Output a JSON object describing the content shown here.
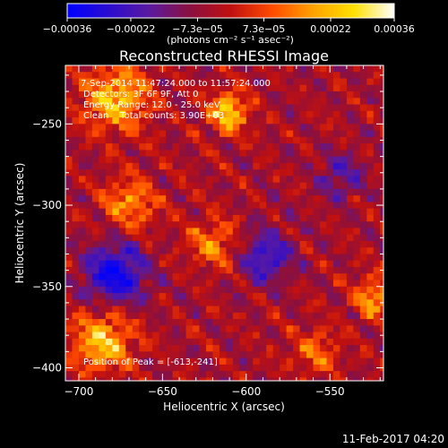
{
  "chart_data": {
    "type": "heatmap",
    "title": "Reconstructed RHESSI Image",
    "xlabel": "Heliocentric X (arcsec)",
    "ylabel": "Heliocentric Y (arcsec)",
    "xlim": [
      -708,
      -518
    ],
    "ylim": [
      -408,
      -214
    ],
    "x_ticks": [
      -700,
      -650,
      -600,
      -550
    ],
    "y_ticks": [
      -400,
      -350,
      -300,
      -250
    ],
    "x_tick_labels": [
      "−700",
      "−650",
      "−600",
      "−550"
    ],
    "y_tick_labels": [
      "−400",
      "−350",
      "−300",
      "−250"
    ],
    "colorbar": {
      "range": [
        -0.00036,
        0.00036
      ],
      "ticks": [
        -0.00036,
        -0.00022,
        -7.3e-05,
        7.3e-05,
        0.00022,
        0.00036
      ],
      "tick_labels": [
        "−0.00036",
        "−0.00022",
        "−7.3e−05",
        "7.3e−05",
        "0.00022",
        "0.00036"
      ],
      "unit_label": "(photons cm⁻² s⁻¹ asec⁻²)",
      "colors": [
        "#0000ff",
        "#2a0cd0",
        "#5a1aa0",
        "#8a1040",
        "#c01010",
        "#ff4a00",
        "#ffa000",
        "#ffe000",
        "#ffffff"
      ]
    },
    "annotations": {
      "time": "7-Sep-2014 11:47:24.000 to 11:57:24.000",
      "detectors": "Detectors: 3F 6F 9F, Att 0",
      "energy": "Energy Range: 12.0 - 25.0 keV",
      "clean": "Clean    Total counts: 3.90E+03",
      "peak": "Position of Peak = [-613,-241]"
    },
    "peak": {
      "x": -613,
      "y": -241
    },
    "bright_regions": [
      {
        "x": -613,
        "y": -241,
        "intensity": 1.0,
        "size": 12
      },
      {
        "x": -680,
        "y": -232,
        "intensity": 0.9,
        "size": 20
      },
      {
        "x": -688,
        "y": -382,
        "intensity": 0.9,
        "size": 18
      },
      {
        "x": -672,
        "y": -297,
        "intensity": 0.65,
        "size": 16
      },
      {
        "x": -622,
        "y": -322,
        "intensity": 0.6,
        "size": 15
      },
      {
        "x": -525,
        "y": -355,
        "intensity": 0.75,
        "size": 12
      },
      {
        "x": -560,
        "y": -388,
        "intensity": 0.5,
        "size": 14
      }
    ],
    "dark_regions": [
      {
        "x": -680,
        "y": -340,
        "intensity": 0.8,
        "size": 18
      },
      {
        "x": -590,
        "y": -330,
        "intensity": 0.6,
        "size": 16
      },
      {
        "x": -545,
        "y": -280,
        "intensity": 0.4,
        "size": 14
      }
    ]
  },
  "footer": {
    "date": "11-Feb-2017 04:20"
  }
}
